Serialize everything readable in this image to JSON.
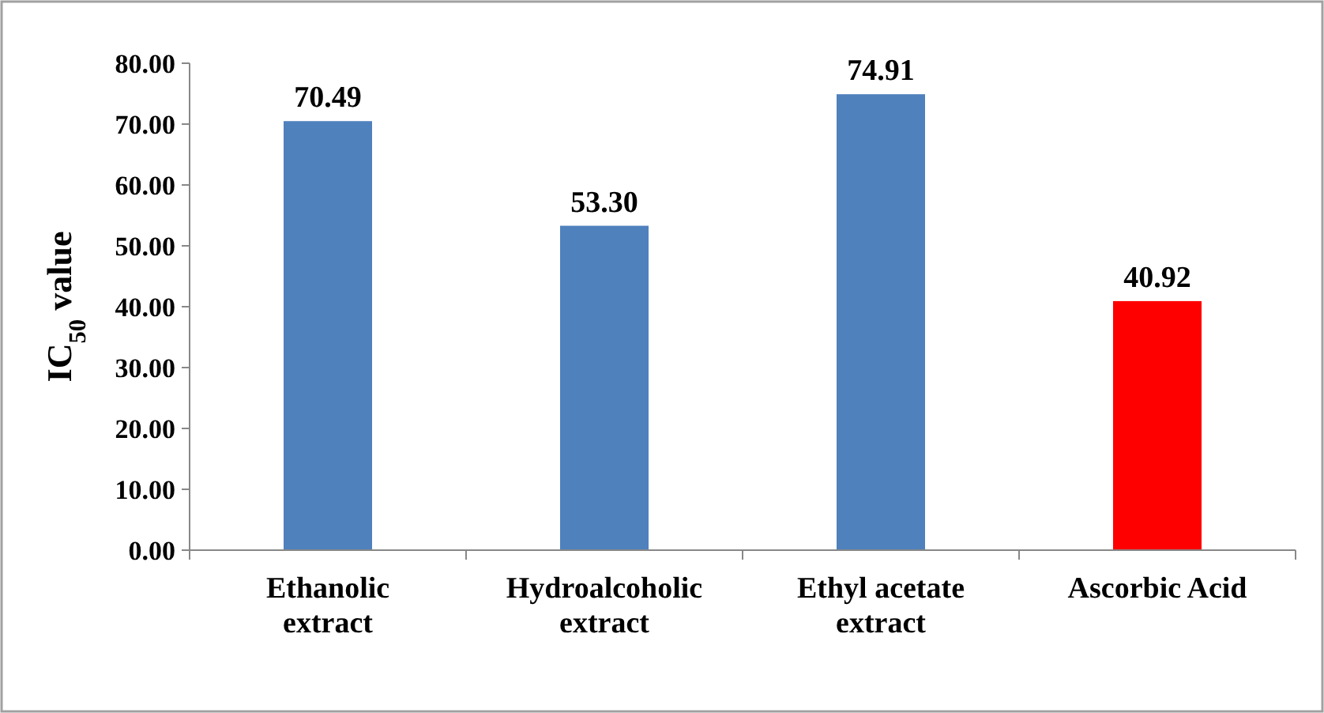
{
  "chart_data": {
    "type": "bar",
    "ylabel": "IC$_{50}$ value",
    "categories": [
      "Ethanolic extract",
      "Hydroalcoholic extract",
      "Ethyl acetate extract",
      "Ascorbic Acid"
    ],
    "values": [
      70.49,
      53.3,
      74.91,
      40.92
    ],
    "colors": [
      "#4f81bd",
      "#4f81bd",
      "#4f81bd",
      "#ff0000"
    ],
    "value_labels": [
      "70.49",
      "53.30",
      "74.91",
      "40.92"
    ],
    "ylim": [
      0,
      80
    ],
    "yticks": [
      {
        "value": 0,
        "label": "0.00"
      },
      {
        "value": 10,
        "label": "10.00"
      },
      {
        "value": 20,
        "label": "20.00"
      },
      {
        "value": 30,
        "label": "30.00"
      },
      {
        "value": 40,
        "label": "40.00"
      },
      {
        "value": 50,
        "label": "50.00"
      },
      {
        "value": 60,
        "label": "60.00"
      },
      {
        "value": 70,
        "label": "70.00"
      },
      {
        "value": 80,
        "label": "80.00"
      }
    ],
    "grid": false
  }
}
